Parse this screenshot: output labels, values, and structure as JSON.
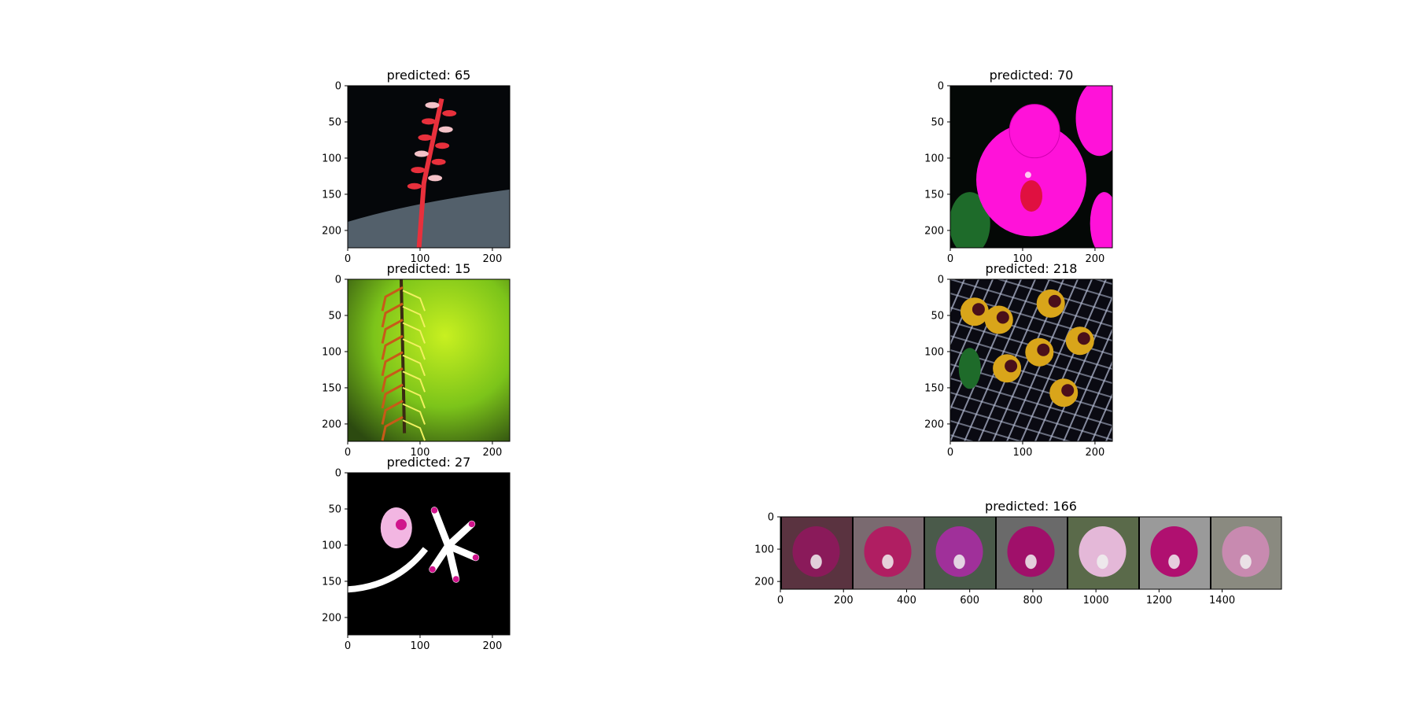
{
  "figure": {
    "background": "#ffffff"
  },
  "chart_data": [
    {
      "type": "image",
      "title": "predicted: 65",
      "content": "red flower spike",
      "xlim": [
        0,
        224
      ],
      "ylim": [
        224,
        0
      ],
      "xticks": [
        0,
        100,
        200
      ],
      "yticks": [
        0,
        50,
        100,
        150,
        200
      ],
      "grid": false,
      "palette": {
        "background": "#05070a",
        "accent": "#e8303c",
        "highlight": "#f4c2c8",
        "stone": "#6e7f8c"
      }
    },
    {
      "type": "image",
      "title": "predicted: 70",
      "content": "magenta orchid",
      "xlim": [
        0,
        224
      ],
      "ylim": [
        224,
        0
      ],
      "xticks": [
        0,
        100,
        200
      ],
      "yticks": [
        0,
        50,
        100,
        150,
        200
      ],
      "grid": false,
      "palette": {
        "background": "#040806",
        "accent": "#ff12d9",
        "highlight": "#ffc8f2",
        "stone": "#1e6b2a"
      }
    },
    {
      "type": "image",
      "title": "predicted: 15",
      "content": "green background with stem",
      "xlim": [
        0,
        224
      ],
      "ylim": [
        224,
        0
      ],
      "xticks": [
        0,
        100,
        200
      ],
      "yticks": [
        0,
        50,
        100,
        150,
        200
      ],
      "grid": false,
      "palette": {
        "background": "#7cc41a",
        "accent": "#c85a18",
        "highlight": "#f0f060",
        "stone": "#3a2a12"
      }
    },
    {
      "type": "image",
      "title": "predicted: 218",
      "content": "spotted yellow orchids over grid",
      "xlim": [
        0,
        224
      ],
      "ylim": [
        224,
        0
      ],
      "xticks": [
        0,
        100,
        200
      ],
      "yticks": [
        0,
        50,
        100,
        150,
        200
      ],
      "grid": false,
      "palette": {
        "background": "#0a0a12",
        "accent": "#d9a51a",
        "highlight": "#4a0f1a",
        "stone": "#b8c0d8"
      }
    },
    {
      "type": "image",
      "title": "predicted: 27",
      "content": "white and purple orchid on black",
      "xlim": [
        0,
        224
      ],
      "ylim": [
        224,
        0
      ],
      "xticks": [
        0,
        100,
        200
      ],
      "yticks": [
        0,
        50,
        100,
        150,
        200
      ],
      "grid": false,
      "palette": {
        "background": "#000000",
        "accent": "#ffffff",
        "highlight": "#d0148c",
        "stone": "#f2b6e2"
      }
    },
    {
      "type": "image",
      "title": "predicted: 166",
      "content": "grid of 7 orchid photos",
      "xlim": [
        0,
        1588
      ],
      "ylim": [
        224,
        0
      ],
      "xticks": [
        0,
        200,
        400,
        600,
        800,
        1000,
        1200,
        1400
      ],
      "yticks": [
        0,
        100,
        200
      ],
      "grid": false,
      "tiles": [
        {
          "bg": "#5a3340",
          "flower": "#8a1a5a"
        },
        {
          "bg": "#7a6a70",
          "flower": "#b01e62"
        },
        {
          "bg": "#4a5a4a",
          "flower": "#a0309a"
        },
        {
          "bg": "#6a6a6a",
          "flower": "#a0106a"
        },
        {
          "bg": "#5a6a4a",
          "flower": "#e4b8d8"
        },
        {
          "bg": "#9a9a9a",
          "flower": "#b01070"
        },
        {
          "bg": "#8a8a80",
          "flower": "#c88ab0"
        }
      ]
    }
  ]
}
